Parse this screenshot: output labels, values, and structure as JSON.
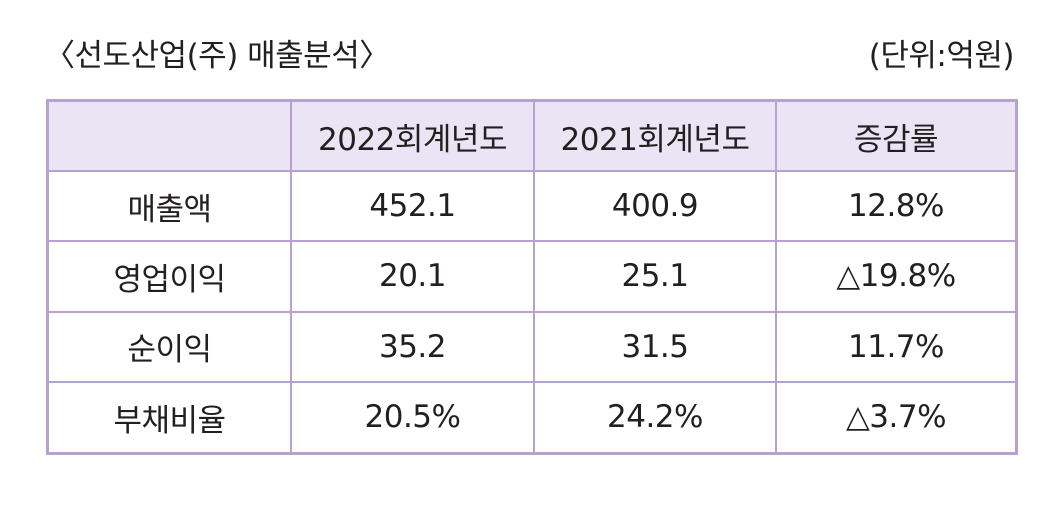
{
  "title": "〈선도산업(주) 매출분석〉",
  "unit": "(단위:억원)",
  "table": {
    "headers": [
      "",
      "2022회계년도",
      "2021회계년도",
      "증감률"
    ],
    "rows": [
      {
        "label": "매출액",
        "y2022": "452.1",
        "y2021": "400.9",
        "change": "12.8%"
      },
      {
        "label": "영업이익",
        "y2022": "20.1",
        "y2021": "25.1",
        "change": "△19.8%"
      },
      {
        "label": "순이익",
        "y2022": "35.2",
        "y2021": "31.5",
        "change": "11.7%"
      },
      {
        "label": "부채비율",
        "y2022": "20.5%",
        "y2021": "24.2%",
        "change": "△3.7%"
      }
    ]
  },
  "colors": {
    "border": "#b5a2cf",
    "header_bg": "#ebe4f4",
    "text": "#231f20"
  }
}
